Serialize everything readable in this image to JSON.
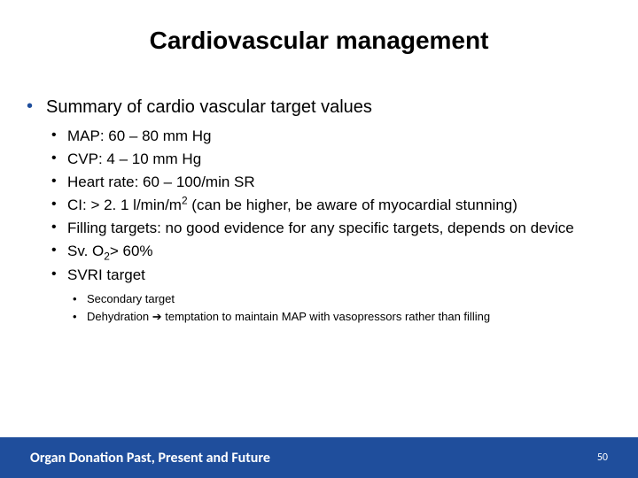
{
  "title": "Cardiovascular management",
  "title_fontsize": 28,
  "title_color": "#000000",
  "level1_text": "Summary of cardio vascular target values",
  "level1_fontsize": 20,
  "bullet_color_level1": "#1f4e9c",
  "level2_fontsize": 17,
  "level2_items": {
    "i0": "MAP: 60 – 80 mm Hg",
    "i1": "CVP: 4 – 10 mm Hg",
    "i2": "Heart rate: 60 – 100/min SR",
    "i3_pre": "CI: > 2. 1 l/min/m",
    "i3_sup": "2",
    "i3_post": " (can be higher, be aware of myocardial stunning)",
    "i4": "Filling targets: no good evidence for  any specific targets, depends on device",
    "i5_pre": "Sv. O",
    "i5_sub": "2",
    "i5_post": "> 60%",
    "i6": "SVRI target"
  },
  "level3_fontsize": 13,
  "level3_items": {
    "j0": "Secondary target",
    "j1_pre": "Dehydration ",
    "j1_arrow": "➔",
    "j1_post": " temptation to maintain MAP with vasopressors rather than filling"
  },
  "footer": {
    "text": "Organ Donation Past, Present and Future",
    "page": "50",
    "bg_color": "#1f4e9c",
    "text_color": "#ffffff",
    "height": 46,
    "fontsize": 16
  },
  "background_color": "#ffffff"
}
